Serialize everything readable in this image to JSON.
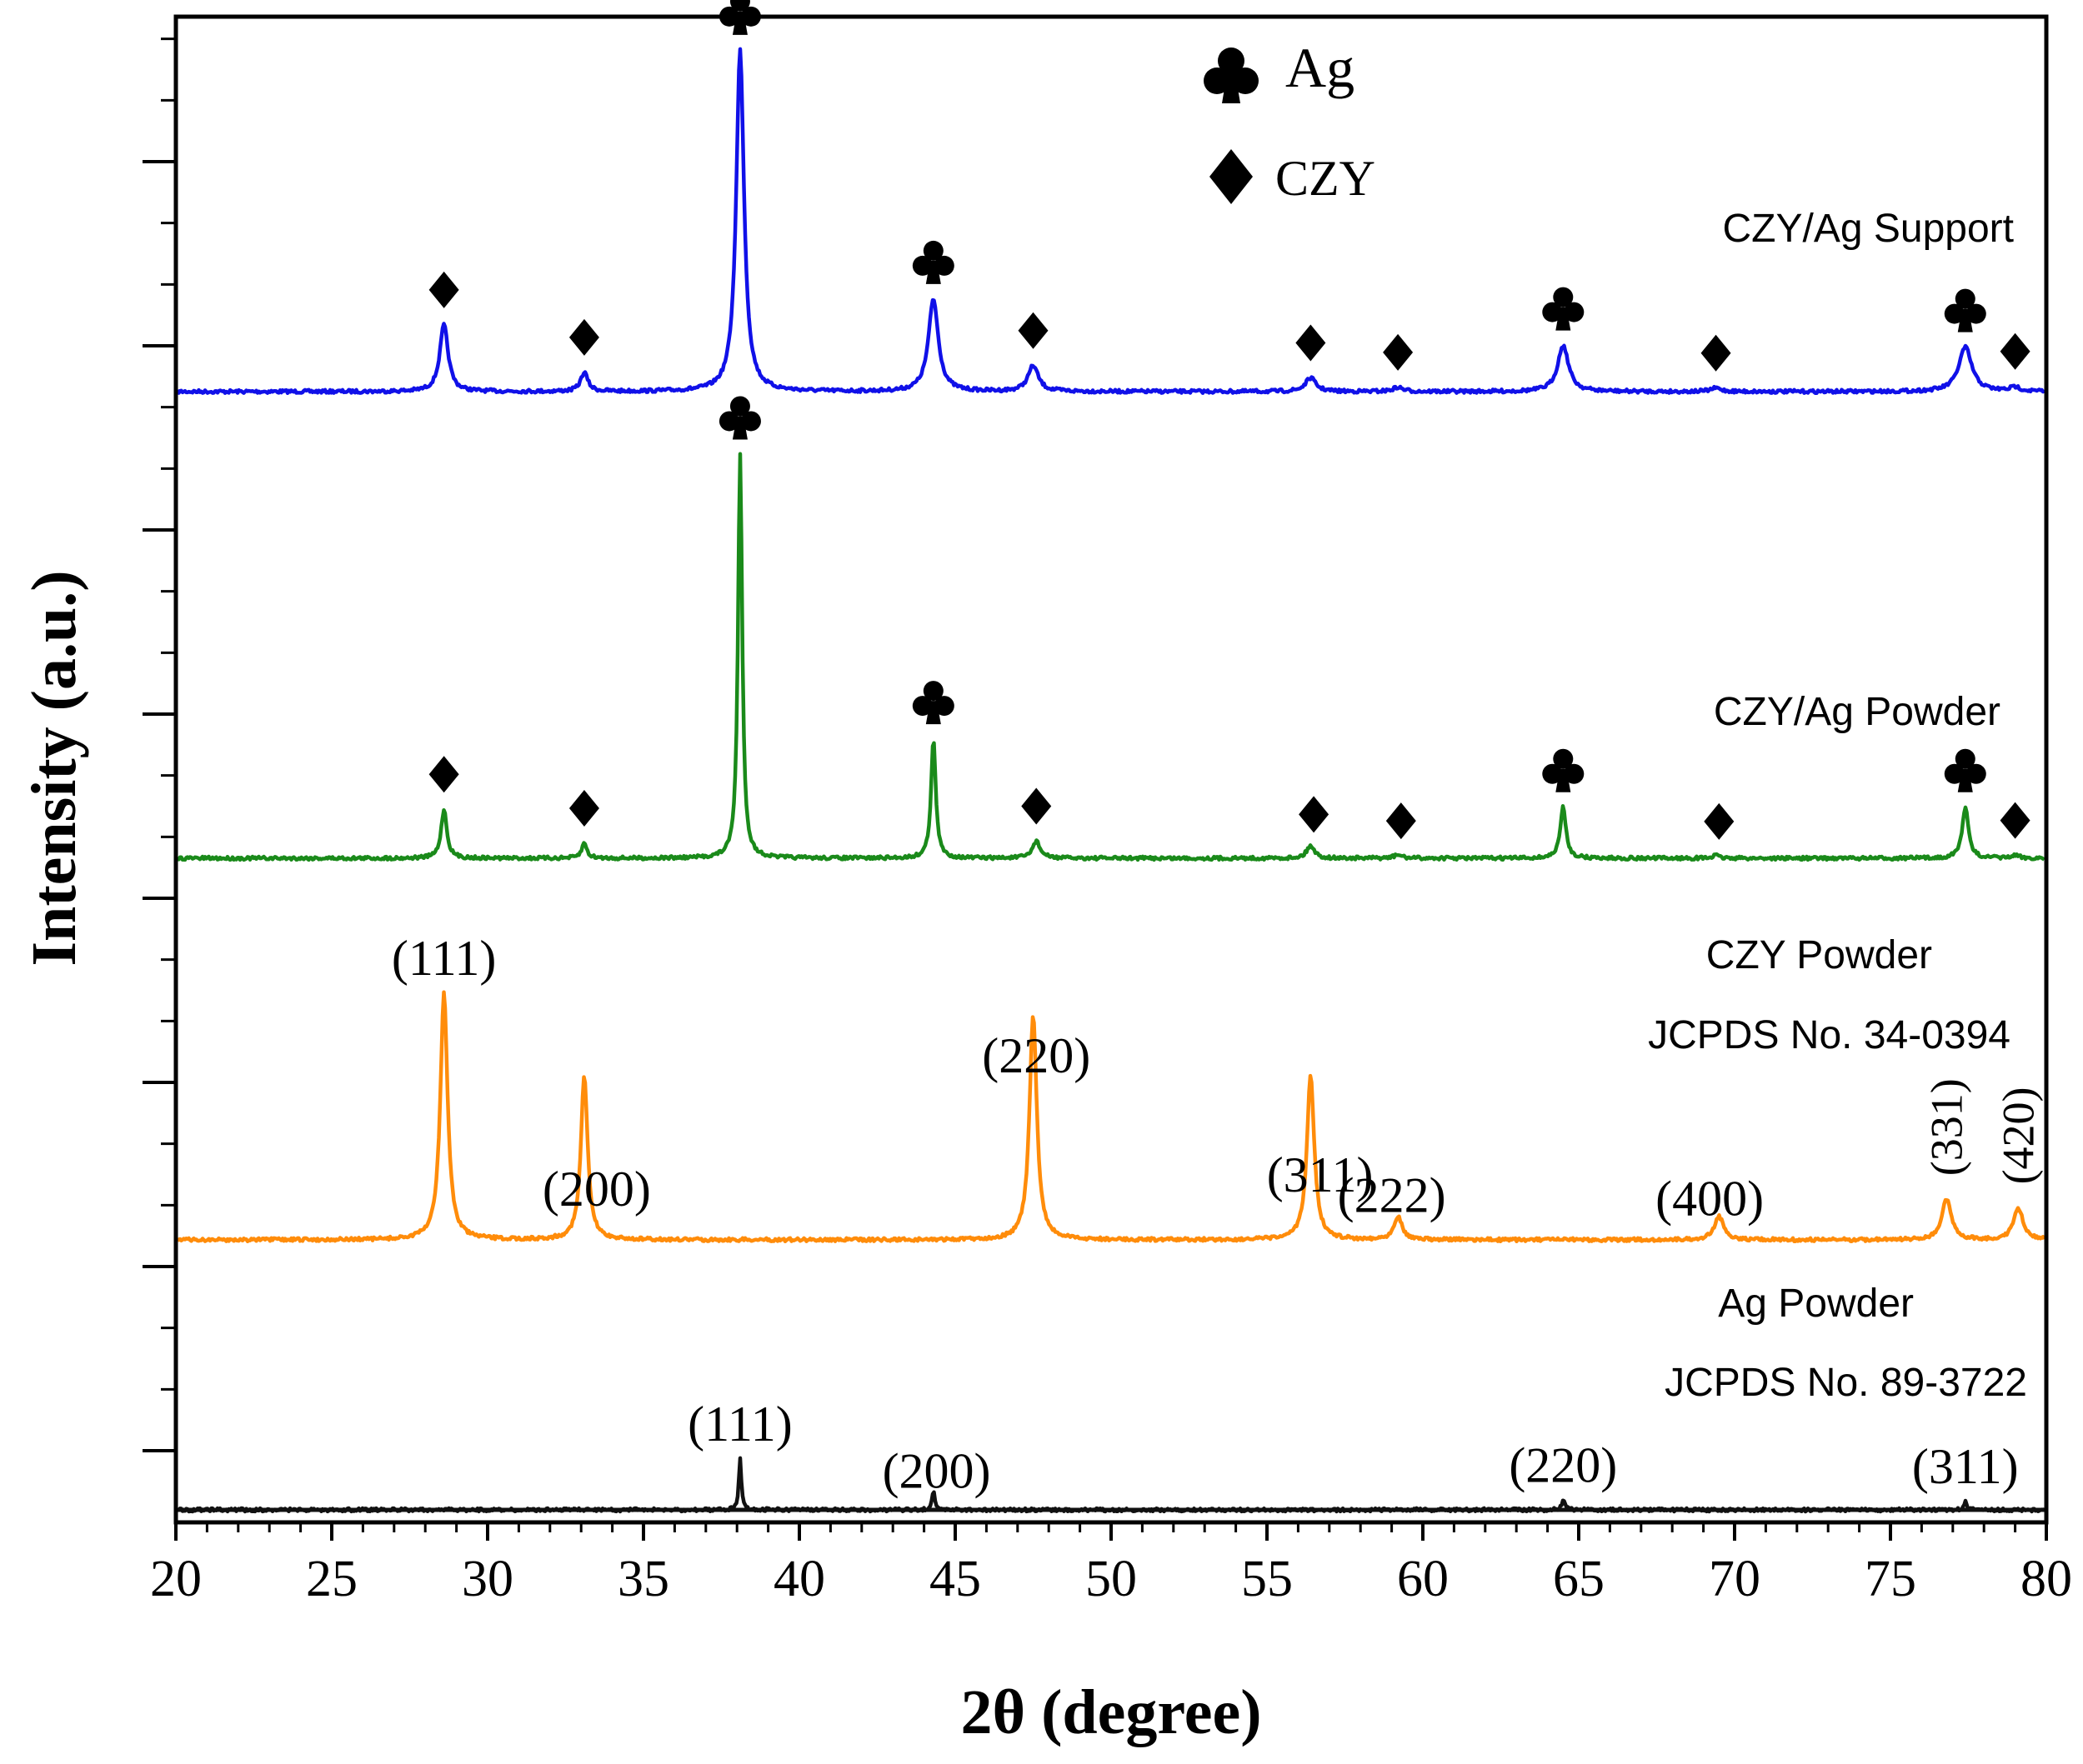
{
  "chart_data": {
    "type": "line",
    "title": "",
    "xlabel": "2θ (degree)",
    "ylabel": "Intensity (a.u.)",
    "xlim": [
      20,
      80
    ],
    "xticks": [
      20,
      25,
      30,
      35,
      40,
      45,
      50,
      55,
      60,
      65,
      70,
      75,
      80
    ],
    "xtick_labels": [
      "20",
      "25",
      "30",
      "35",
      "40",
      "45",
      "50",
      "55",
      "60",
      "65",
      "70",
      "75",
      "80"
    ],
    "y_units": "arbitrary (stacked traces, baseline 0, peak heights relative)",
    "legend": {
      "position": "top-center",
      "entries": [
        {
          "symbol": "club",
          "label": "Ag"
        },
        {
          "symbol": "diamond",
          "label": "CZY"
        }
      ]
    },
    "series": [
      {
        "name": "CZY/Ag Support",
        "color": "#1010e8",
        "offset": 3.0,
        "labels": [
          "CZY/Ag Support"
        ],
        "peaks": [
          {
            "x": 28.6,
            "h": 0.195,
            "w": 0.32
          },
          {
            "x": 33.1,
            "h": 0.055,
            "w": 0.28
          },
          {
            "x": 38.1,
            "h": 1.0,
            "w": 0.3
          },
          {
            "x": 44.3,
            "h": 0.27,
            "w": 0.38
          },
          {
            "x": 47.5,
            "h": 0.075,
            "w": 0.4
          },
          {
            "x": 56.4,
            "h": 0.04,
            "w": 0.4
          },
          {
            "x": 59.2,
            "h": 0.012,
            "w": 0.4
          },
          {
            "x": 64.5,
            "h": 0.135,
            "w": 0.42
          },
          {
            "x": 69.4,
            "h": 0.01,
            "w": 0.4
          },
          {
            "x": 77.4,
            "h": 0.13,
            "w": 0.5
          },
          {
            "x": 79.0,
            "h": 0.012,
            "w": 0.4
          }
        ],
        "markers": [
          {
            "x": 28.6,
            "symbol": "diamond"
          },
          {
            "x": 33.1,
            "symbol": "diamond"
          },
          {
            "x": 38.1,
            "symbol": "club"
          },
          {
            "x": 44.3,
            "symbol": "club"
          },
          {
            "x": 47.5,
            "symbol": "diamond"
          },
          {
            "x": 56.4,
            "symbol": "diamond"
          },
          {
            "x": 59.2,
            "symbol": "diamond"
          },
          {
            "x": 64.5,
            "symbol": "club"
          },
          {
            "x": 69.4,
            "symbol": "diamond"
          },
          {
            "x": 77.4,
            "symbol": "club"
          },
          {
            "x": 79.0,
            "symbol": "diamond"
          }
        ]
      },
      {
        "name": "CZY/Ag Powder",
        "color": "#1a8a1a",
        "offset": 2.0,
        "labels": [
          "CZY/Ag Powder"
        ],
        "peaks": [
          {
            "x": 28.6,
            "h": 0.115,
            "w": 0.22
          },
          {
            "x": 33.1,
            "h": 0.035,
            "w": 0.2
          },
          {
            "x": 38.1,
            "h": 0.95,
            "w": 0.16
          },
          {
            "x": 44.3,
            "h": 0.28,
            "w": 0.18
          },
          {
            "x": 47.6,
            "h": 0.04,
            "w": 0.3
          },
          {
            "x": 56.4,
            "h": 0.03,
            "w": 0.3
          },
          {
            "x": 59.2,
            "h": 0.008,
            "w": 0.3
          },
          {
            "x": 64.5,
            "h": 0.12,
            "w": 0.22
          },
          {
            "x": 69.4,
            "h": 0.006,
            "w": 0.3
          },
          {
            "x": 77.4,
            "h": 0.12,
            "w": 0.24
          },
          {
            "x": 79.0,
            "h": 0.006,
            "w": 0.3
          }
        ],
        "markers": [
          {
            "x": 28.6,
            "symbol": "diamond"
          },
          {
            "x": 33.1,
            "symbol": "diamond"
          },
          {
            "x": 38.1,
            "symbol": "club"
          },
          {
            "x": 44.3,
            "symbol": "club"
          },
          {
            "x": 47.6,
            "symbol": "diamond"
          },
          {
            "x": 56.5,
            "symbol": "diamond"
          },
          {
            "x": 59.3,
            "symbol": "diamond"
          },
          {
            "x": 64.5,
            "symbol": "club"
          },
          {
            "x": 69.5,
            "symbol": "diamond"
          },
          {
            "x": 77.4,
            "symbol": "club"
          },
          {
            "x": 79.0,
            "symbol": "diamond"
          }
        ]
      },
      {
        "name": "CZY Powder",
        "color": "#ff8c0a",
        "offset": 1.0,
        "labels": [
          "CZY Powder",
          "JCPDS No. 34-0394"
        ],
        "peaks": [
          {
            "x": 28.6,
            "h": 0.58,
            "w": 0.28
          },
          {
            "x": 33.1,
            "h": 0.385,
            "w": 0.26
          },
          {
            "x": 47.5,
            "h": 0.53,
            "w": 0.28
          },
          {
            "x": 56.4,
            "h": 0.39,
            "w": 0.28
          },
          {
            "x": 59.2,
            "h": 0.055,
            "w": 0.32
          },
          {
            "x": 69.5,
            "h": 0.055,
            "w": 0.36
          },
          {
            "x": 76.8,
            "h": 0.095,
            "w": 0.36
          },
          {
            "x": 79.1,
            "h": 0.075,
            "w": 0.36
          }
        ],
        "annotations": [
          {
            "x": 28.6,
            "text": "(111)",
            "rotated": false
          },
          {
            "x": 33.5,
            "text": "(200)",
            "rotated": false
          },
          {
            "x": 47.6,
            "text": "(220)",
            "rotated": false
          },
          {
            "x": 56.7,
            "text": "(311)",
            "rotated": false
          },
          {
            "x": 59.0,
            "text": "(222)",
            "rotated": false
          },
          {
            "x": 69.2,
            "text": "(400)",
            "rotated": false
          },
          {
            "x": 76.8,
            "text": "(331)",
            "rotated": true
          },
          {
            "x": 79.1,
            "text": "(420)",
            "rotated": true
          }
        ]
      },
      {
        "name": "Ag Powder",
        "color": "#111111",
        "offset": 0.0,
        "labels": [
          "Ag Powder",
          "JCPDS No. 89-3722"
        ],
        "peaks": [
          {
            "x": 38.1,
            "h": 0.185,
            "w": 0.1
          },
          {
            "x": 44.3,
            "h": 0.07,
            "w": 0.1
          },
          {
            "x": 64.5,
            "h": 0.035,
            "w": 0.12
          },
          {
            "x": 77.4,
            "h": 0.03,
            "w": 0.12
          }
        ],
        "annotations": [
          {
            "x": 38.1,
            "text": "(111)",
            "rotated": false
          },
          {
            "x": 44.4,
            "text": "(200)",
            "rotated": false
          },
          {
            "x": 64.5,
            "text": "(220)",
            "rotated": false
          },
          {
            "x": 77.4,
            "text": "(311)",
            "rotated": false
          }
        ]
      }
    ]
  }
}
